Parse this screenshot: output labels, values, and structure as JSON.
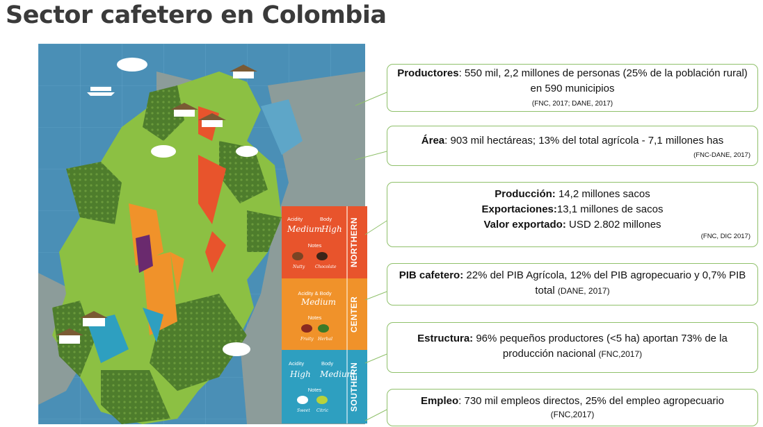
{
  "title": "Sector cafetero en Colombia",
  "callouts": {
    "productores": {
      "label": "Productores",
      "text": ": 550 mil, 2,2 millones de personas (25% de la población rural) en 590 municipios",
      "source": "(FNC, 2017;  DANE, 2017)"
    },
    "area": {
      "label": "Área",
      "text": ": 903 mil hectáreas; 13% del total agrícola - 7,1 millones has",
      "source": "(FNC-DANE, 2017)"
    },
    "produccion": {
      "label1": "Producción:",
      "text1": " 14,2 millones sacos",
      "label2": "Exportaciones:",
      "text2": "13,1 millones de sacos",
      "label3": "Valor exportado:",
      "text3": " USD 2.802 millones",
      "source": "(FNC, DIC 2017)"
    },
    "pib": {
      "label": "PIB cafetero:",
      "text": " 22% del PIB Agrícola, 12% del PIB agropecuario y 0,7% PIB total ",
      "source": "(DANE, 2017)"
    },
    "estructura": {
      "label": "Estructura:",
      "text": " 96% pequeños productores (<5 ha) aportan 73% de la producción nacional ",
      "source": "(FNC,2017)"
    },
    "empleo": {
      "label": "Empleo",
      "text": ": 730 mil empleos directos,  25% del empleo agropecuario",
      "source": "(FNC,2017)"
    }
  },
  "legend": {
    "northern": {
      "region": "NORTHERN",
      "acidity_label": "Acidity",
      "body_label": "Body",
      "acidity": "Medium",
      "body": "High",
      "notes_label": "Notes",
      "note1": "Nutty",
      "note2": "Chocolate",
      "color": "#e8542c"
    },
    "center": {
      "region": "CENTER",
      "combo_label": "Acidity & Body",
      "combo": "Medium",
      "notes_label": "Notes",
      "note1": "Fruity",
      "note2": "Herbal",
      "color": "#f0922a"
    },
    "southern": {
      "region": "SOUTHERN",
      "acidity_label": "Acidity",
      "body_label": "Body",
      "acidity": "High",
      "body": "Medium",
      "notes_label": "Notes",
      "note1": "Sweet",
      "note2": "Citric",
      "color": "#2e9fc0"
    }
  }
}
